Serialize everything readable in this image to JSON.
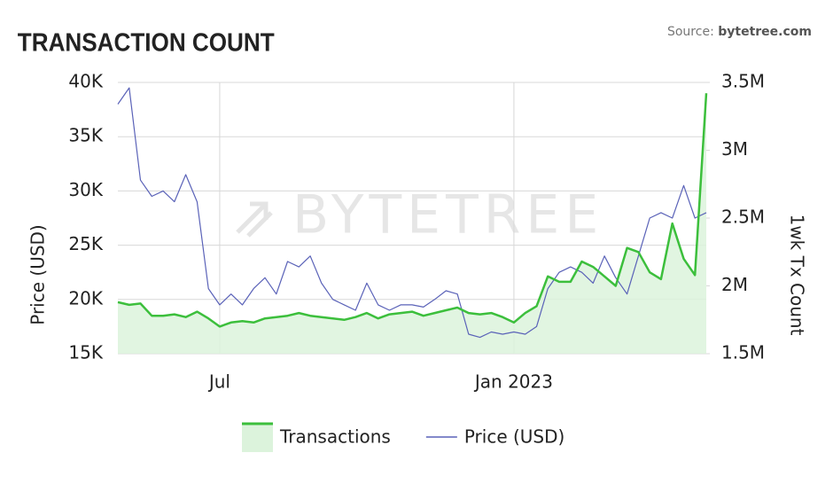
{
  "chart_data": {
    "type": "line",
    "title": "TRANSACTION COUNT",
    "source_label": "Source:",
    "source": "bytetree.com",
    "watermark": "BYTETREE",
    "y_label": "Price (USD)",
    "y2_label": "1wk Tx Count",
    "categories": [
      null,
      null,
      null,
      null,
      null,
      null,
      null,
      null,
      null,
      "Jul",
      null,
      null,
      null,
      null,
      null,
      null,
      null,
      null,
      null,
      null,
      null,
      null,
      null,
      null,
      null,
      null,
      null,
      null,
      null,
      null,
      null,
      null,
      null,
      null,
      null,
      "Jan 2023",
      null,
      null,
      null,
      null,
      null,
      null,
      null,
      null,
      null,
      null,
      null,
      null,
      null,
      null,
      null,
      null,
      null
    ],
    "series": [
      {
        "name": "Transactions",
        "color": "#3cbf3c",
        "fill": "#dcf3dc",
        "axis": "y2",
        "values": [
          1880000,
          1860000,
          1870000,
          1780000,
          1780000,
          1790000,
          1770000,
          1810000,
          1760000,
          1700000,
          1730000,
          1740000,
          1730000,
          1760000,
          1770000,
          1780000,
          1800000,
          1780000,
          1770000,
          1760000,
          1750000,
          1770000,
          1800000,
          1760000,
          1790000,
          1800000,
          1810000,
          1780000,
          1800000,
          1820000,
          1840000,
          1800000,
          1790000,
          1800000,
          1770000,
          1730000,
          1800000,
          1850000,
          2070000,
          2030000,
          2030000,
          2180000,
          2140000,
          2070000,
          2000000,
          2280000,
          2250000,
          2100000,
          2050000,
          2460000,
          2200000,
          2080000,
          3420000
        ]
      },
      {
        "name": "Price (USD)",
        "color": "#5a62b8",
        "values": [
          38000,
          39500,
          31000,
          29500,
          30000,
          29000,
          31500,
          29000,
          21000,
          19500,
          20500,
          19500,
          21000,
          22000,
          20500,
          23500,
          23000,
          24000,
          21500,
          20000,
          19500,
          19000,
          21500,
          19500,
          19000,
          19500,
          19500,
          19300,
          20000,
          20800,
          20500,
          16800,
          16500,
          17000,
          16800,
          17000,
          16800,
          17500,
          21000,
          22500,
          23000,
          22500,
          21500,
          24000,
          22000,
          20500,
          24000,
          27500,
          28000,
          27500,
          30500,
          27500,
          28000
        ]
      }
    ],
    "ylim": [
      15000,
      40000
    ],
    "yticks": [
      {
        "value": 15000,
        "label": "15K"
      },
      {
        "value": 20000,
        "label": "20K"
      },
      {
        "value": 25000,
        "label": "25K"
      },
      {
        "value": 30000,
        "label": "30K"
      },
      {
        "value": 35000,
        "label": "35K"
      },
      {
        "value": 40000,
        "label": "40K"
      }
    ],
    "y2lim": [
      1500000,
      3500000
    ],
    "y2ticks": [
      {
        "value": 1500000,
        "label": "1.5M"
      },
      {
        "value": 2000000,
        "label": "2M"
      },
      {
        "value": 2500000,
        "label": "2.5M"
      },
      {
        "value": 3000000,
        "label": "3M"
      },
      {
        "value": 3500000,
        "label": "3.5M"
      }
    ],
    "grid": true,
    "legend": "bottom"
  }
}
